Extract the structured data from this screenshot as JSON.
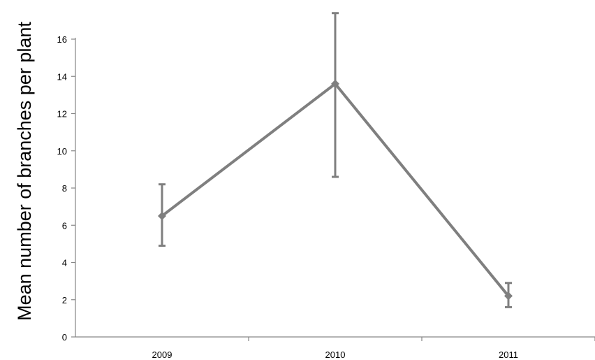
{
  "chart_data": {
    "type": "line",
    "title": "",
    "xlabel": "",
    "ylabel": "Mean number  of branches per plant",
    "categories": [
      "2009",
      "2010",
      "2011"
    ],
    "series": [
      {
        "values": [
          6.5,
          13.6,
          2.2
        ],
        "error_upper": [
          8.2,
          17.4,
          2.9
        ],
        "error_lower": [
          4.9,
          8.6,
          1.6
        ]
      }
    ],
    "ylim": [
      0,
      16
    ],
    "yticks": [
      "0",
      "2",
      "4",
      "6",
      "8",
      "10",
      "12",
      "14",
      "16"
    ],
    "grid": false,
    "legend": "none",
    "colors": {
      "series": "#7f7f7f",
      "axis": "#868686"
    }
  }
}
